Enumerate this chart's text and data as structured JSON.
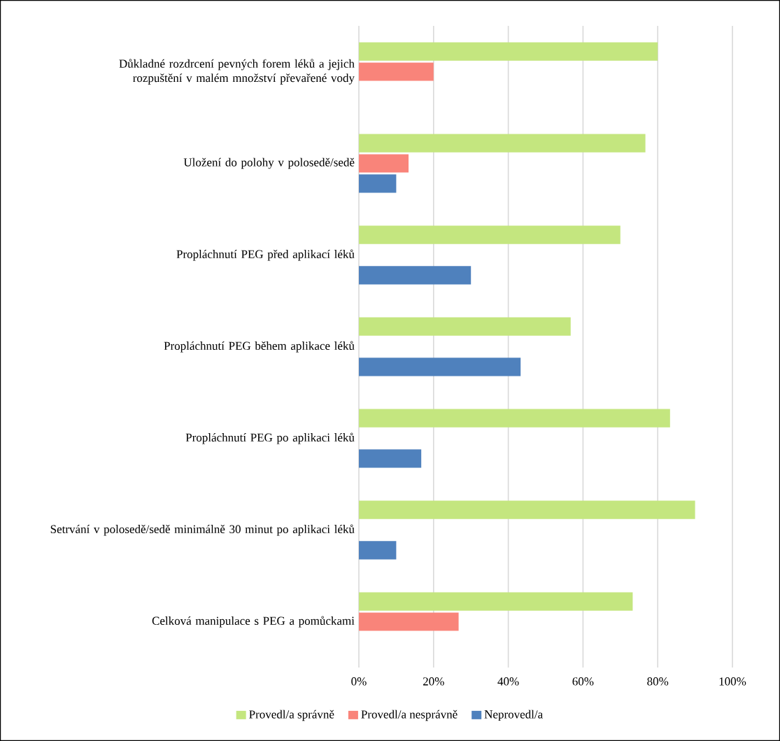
{
  "chart_data": {
    "type": "bar",
    "orientation": "horizontal",
    "categories": [
      "Důkladné rozdrcení pevných forem léků a jejich rozpuštění v malém množství převařené vody",
      "Uložení do polohy v polosedě/sedě",
      "Propláchnutí PEG před aplikací léků",
      "Propláchnutí PEG během aplikace léků",
      "Propláchnutí PEG po aplikaci léků",
      "Setrvání v polosedě/sedě minimálně 30 minut po aplikaci léků",
      "Celková manipulace s PEG a pomůckami"
    ],
    "series": [
      {
        "name": "Provedl/a správně",
        "color": "#c4e67f",
        "values": [
          80,
          76.7,
          70,
          56.7,
          83.3,
          90,
          73.3
        ]
      },
      {
        "name": "Provedl/a nesprávně",
        "color": "#f9847a",
        "values": [
          20,
          13.3,
          null,
          null,
          null,
          null,
          26.7
        ]
      },
      {
        "name": "Neprovedl/a",
        "color": "#4f81bd",
        "values": [
          null,
          10,
          30,
          43.3,
          16.7,
          10,
          null
        ]
      }
    ],
    "xlim": [
      0,
      100
    ],
    "xticks": [
      {
        "value": 0,
        "label": "0%"
      },
      {
        "value": 20,
        "label": "20%"
      },
      {
        "value": 40,
        "label": "40%"
      },
      {
        "value": 60,
        "label": "60%"
      },
      {
        "value": 80,
        "label": "80%"
      },
      {
        "value": 100,
        "label": "100%"
      }
    ],
    "grid": "x",
    "legend": "bottom"
  }
}
